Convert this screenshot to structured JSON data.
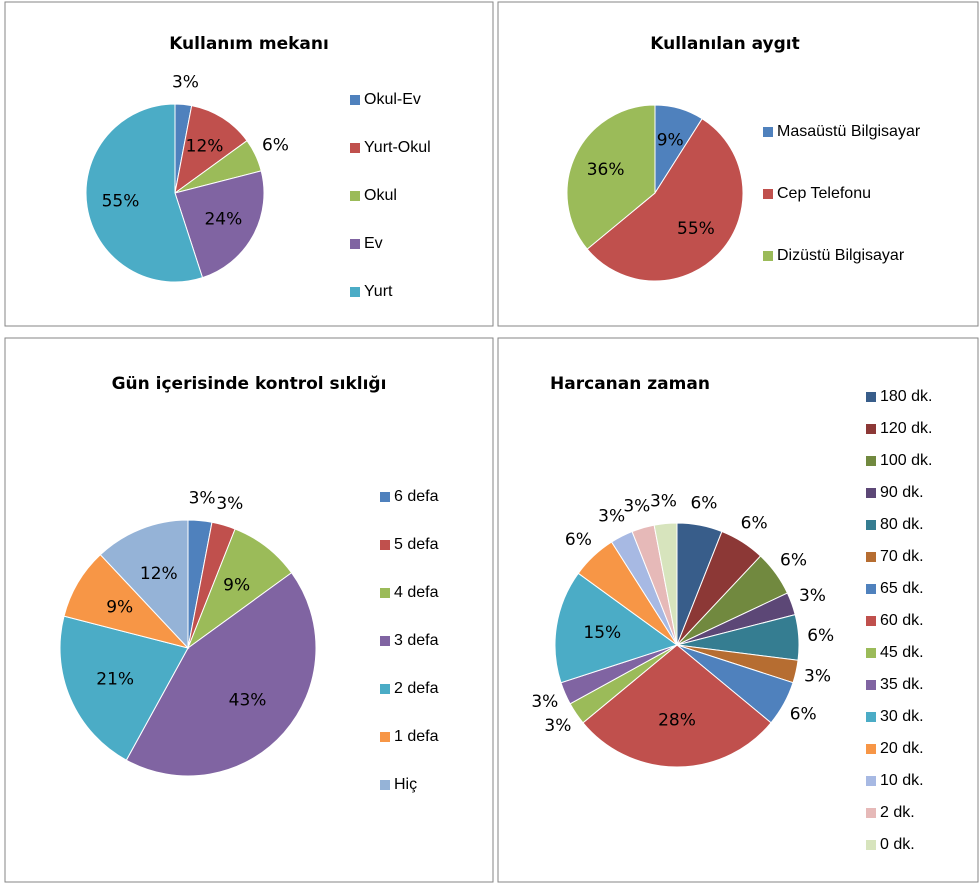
{
  "chart_data": [
    {
      "type": "pie",
      "title": "Kullanım mekanı",
      "categories": [
        "Okul-Ev",
        "Yurt-Okul",
        "Okul",
        "Ev",
        "Yurt"
      ],
      "values": [
        3,
        12,
        6,
        24,
        55
      ],
      "value_labels": [
        "3%",
        "12%",
        "6%",
        "24%",
        "55%"
      ],
      "colors": [
        "#4f81bd",
        "#c0504d",
        "#9bbb59",
        "#8064a2",
        "#4bacc6"
      ]
    },
    {
      "type": "pie",
      "title": "Kullanılan aygıt",
      "categories": [
        "Masaüstü Bilgisayar",
        "Cep Telefonu",
        "Dizüstü Bilgisayar"
      ],
      "values": [
        9,
        55,
        36
      ],
      "value_labels": [
        "9%",
        "55%",
        "36%"
      ],
      "colors": [
        "#4f81bd",
        "#c0504d",
        "#9bbb59"
      ]
    },
    {
      "type": "pie",
      "title": "Gün içerisinde kontrol sıklığı",
      "categories": [
        "6 defa",
        "5 defa",
        "4 defa",
        "3 defa",
        "2 defa",
        "1 defa",
        "Hiç"
      ],
      "values": [
        3,
        3,
        9,
        43,
        21,
        9,
        12
      ],
      "value_labels": [
        "3%",
        "3%",
        "9%",
        "43%",
        "21%",
        "9%",
        "12%"
      ],
      "colors": [
        "#4f81bd",
        "#c0504d",
        "#9bbb59",
        "#8064a2",
        "#4bacc6",
        "#f79646",
        "#95b3d7"
      ]
    },
    {
      "type": "pie",
      "title": "Harcanan zaman",
      "categories": [
        "180 dk.",
        "120 dk.",
        "100 dk.",
        "90 dk.",
        "80 dk.",
        "70 dk.",
        "65 dk.",
        "60 dk.",
        "45 dk.",
        "35 dk.",
        "30 dk.",
        "20 dk.",
        "10 dk.",
        "2 dk.",
        "0 dk."
      ],
      "values": [
        6,
        6,
        6,
        3,
        6,
        3,
        6,
        28,
        3,
        3,
        15,
        6,
        3,
        3,
        3
      ],
      "value_labels": [
        "6%",
        "6%",
        "6%",
        "3%",
        "6%",
        "3%",
        "6%",
        "28%",
        "3%",
        "3%",
        "15%",
        "6%",
        "3%",
        "3%",
        "3%"
      ],
      "colors": [
        "#385d8a",
        "#8c3836",
        "#71893f",
        "#5c4776",
        "#357d91",
        "#b66d31",
        "#4f81bd",
        "#c0504d",
        "#9bbb59",
        "#8064a2",
        "#4bacc6",
        "#f79646",
        "#a7b9e3",
        "#e6b9b8",
        "#d7e4bd"
      ]
    }
  ]
}
